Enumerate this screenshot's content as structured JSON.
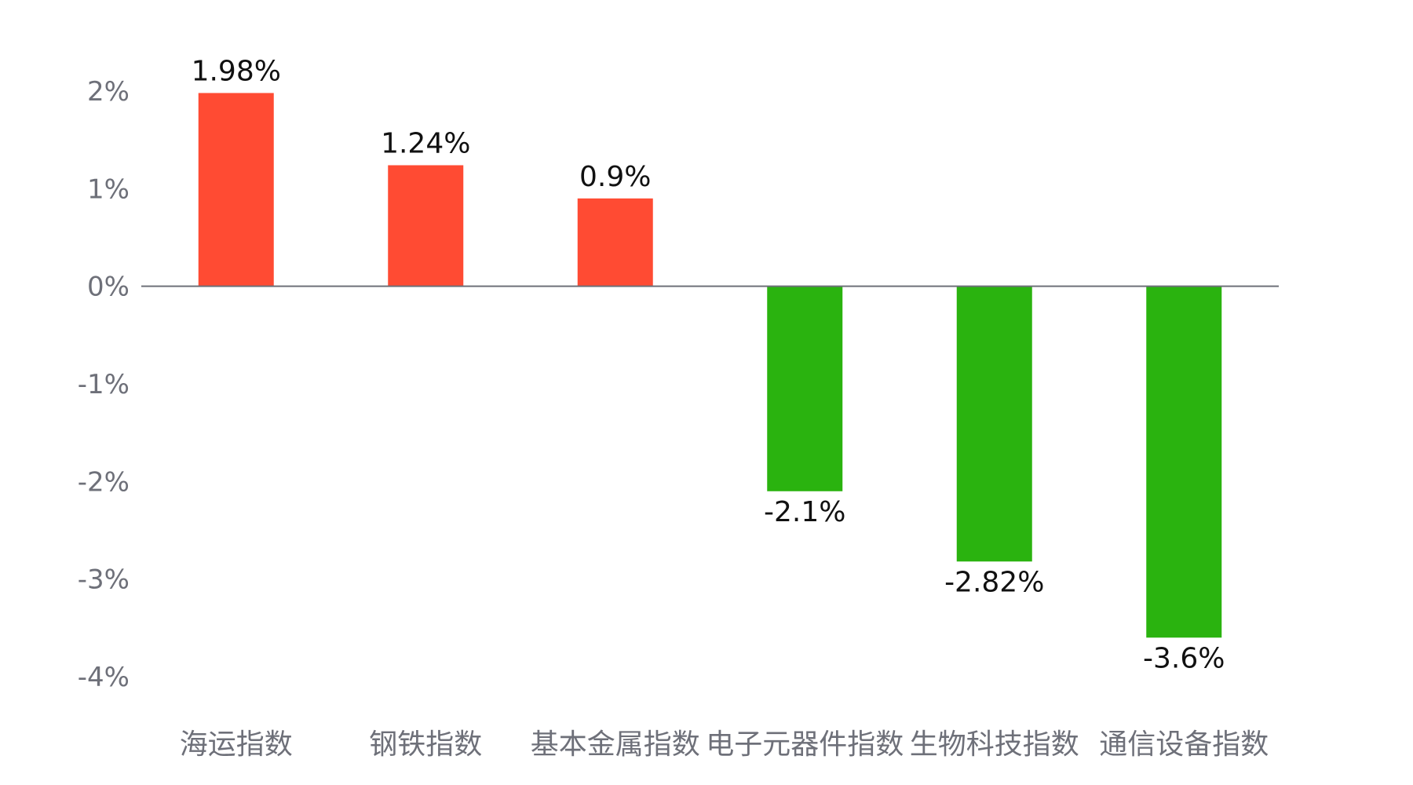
{
  "chart_data": {
    "type": "bar",
    "title": "",
    "xlabel": "",
    "ylabel": "",
    "categories": [
      "海运指数",
      "钢铁指数",
      "基本金属指数",
      "电子元器件指数",
      "生物科技指数",
      "通信设备指数"
    ],
    "values": [
      1.98,
      1.24,
      0.9,
      -2.1,
      -2.82,
      -3.6
    ],
    "value_labels": [
      "1.98%",
      "1.24%",
      "0.9%",
      "-2.1%",
      "-2.82%",
      "-3.6%"
    ],
    "ylim": [
      -4,
      2
    ],
    "yticks": [
      2,
      1,
      0,
      -1,
      -2,
      -3,
      -4
    ],
    "ytick_labels": [
      "2%",
      "1%",
      "0%",
      "-1%",
      "-2%",
      "-3%",
      "-4%"
    ],
    "grid": false,
    "legend": "none",
    "colors": {
      "positive": "#ff4b33",
      "negative": "#2ab30f",
      "axis": "#6e7079",
      "label": "#111111"
    }
  }
}
